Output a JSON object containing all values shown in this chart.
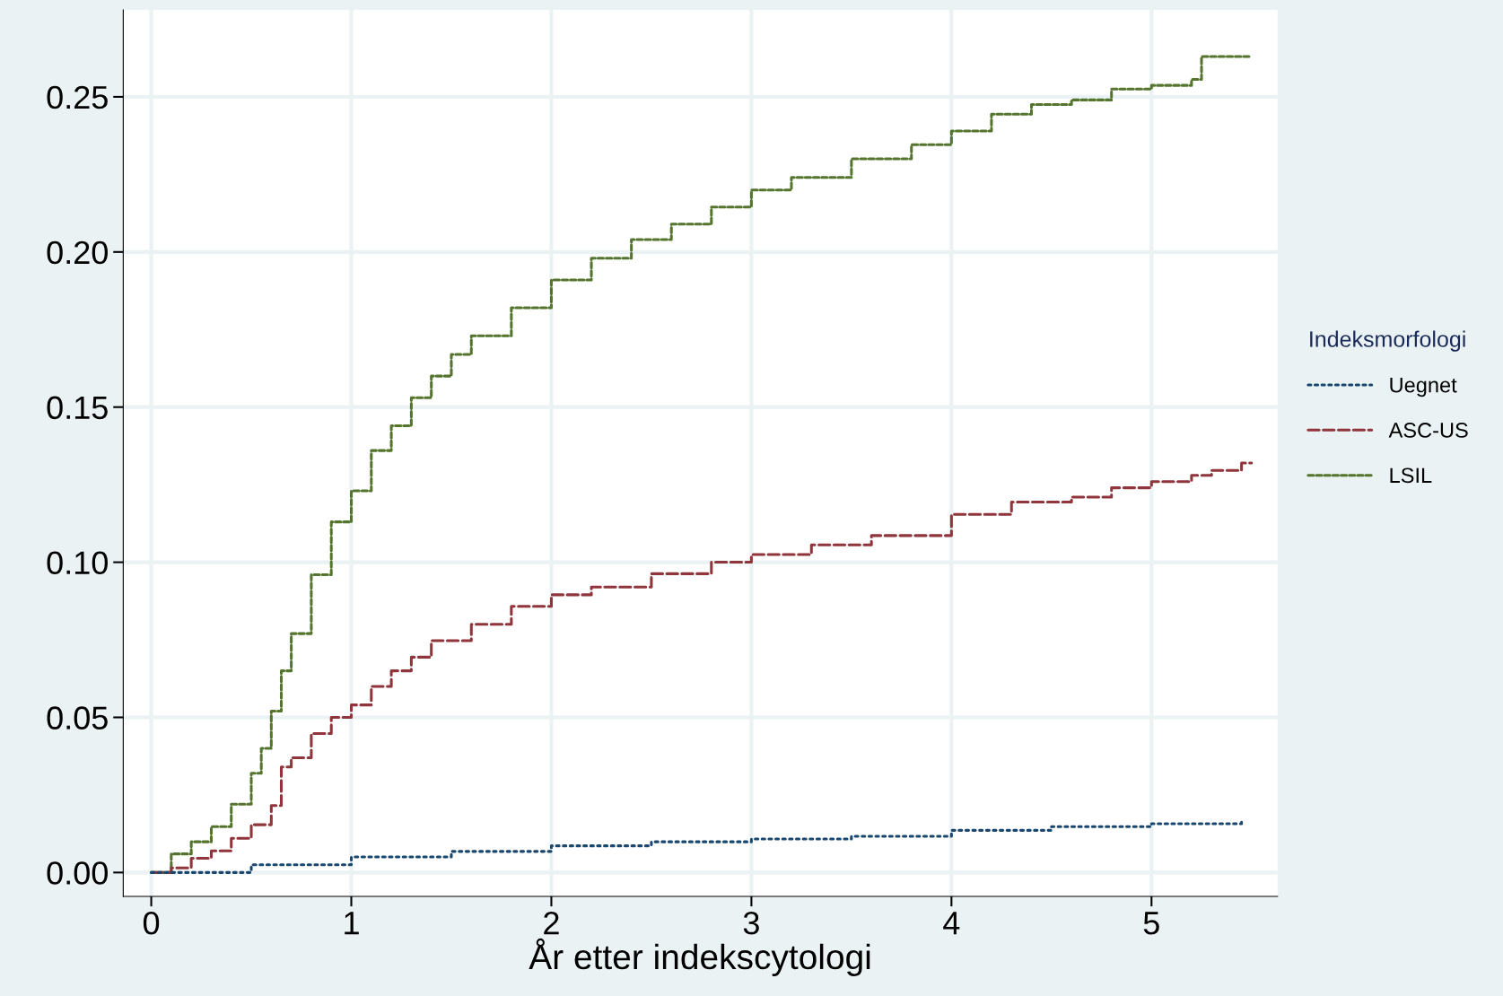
{
  "chart_data": {
    "type": "step",
    "xlabel": "År etter indekscytologi",
    "legend_title": "Indeksmorfologi",
    "legend": "right",
    "grid": true,
    "xlim": [
      -0.14,
      5.63
    ],
    "ylim": [
      -0.0077,
      0.278
    ],
    "xticks": [
      0,
      1,
      2,
      3,
      4,
      5
    ],
    "yticks": [
      {
        "value": 0,
        "label": "0.00"
      },
      {
        "value": 0.05,
        "label": "0.05"
      },
      {
        "value": 0.1,
        "label": "0.10"
      },
      {
        "value": 0.15,
        "label": "0.15"
      },
      {
        "value": 0.2,
        "label": "0.20"
      },
      {
        "value": 0.25,
        "label": "0.25"
      }
    ],
    "series": [
      {
        "name": "Uegnet",
        "color": "#1a476f",
        "line_style": "dotted",
        "x": [
          0,
          0.5,
          1.0,
          1.5,
          2.0,
          2.5,
          3.0,
          3.5,
          4.0,
          4.5,
          5.0,
          5.45
        ],
        "values": [
          0,
          0.0025,
          0.005,
          0.0068,
          0.0086,
          0.0099,
          0.0108,
          0.0117,
          0.0136,
          0.0148,
          0.0157,
          0.017
        ]
      },
      {
        "name": "ASC-US",
        "color": "#90353b",
        "line_style": "dashed",
        "x": [
          0,
          0.1,
          0.2,
          0.3,
          0.4,
          0.5,
          0.6,
          0.65,
          0.7,
          0.8,
          0.9,
          1.0,
          1.1,
          1.2,
          1.3,
          1.4,
          1.6,
          1.8,
          2.0,
          2.2,
          2.5,
          2.8,
          3.0,
          3.3,
          3.6,
          4.0,
          4.3,
          4.6,
          4.8,
          5.0,
          5.2,
          5.3,
          5.45,
          5.5
        ],
        "values": [
          0,
          0.0015,
          0.0046,
          0.007,
          0.011,
          0.0154,
          0.0216,
          0.034,
          0.037,
          0.0448,
          0.05,
          0.054,
          0.06,
          0.065,
          0.0694,
          0.0747,
          0.08,
          0.0858,
          0.0895,
          0.092,
          0.0963,
          0.1,
          0.1025,
          0.1056,
          0.1086,
          0.1154,
          0.1194,
          0.121,
          0.124,
          0.126,
          0.128,
          0.1296,
          0.132,
          0.132
        ]
      },
      {
        "name": "LSIL",
        "color": "#55752f",
        "line_style": "dashed_short",
        "x": [
          0,
          0.1,
          0.2,
          0.3,
          0.4,
          0.5,
          0.55,
          0.6,
          0.65,
          0.7,
          0.8,
          0.9,
          1.0,
          1.1,
          1.2,
          1.3,
          1.4,
          1.5,
          1.6,
          1.8,
          2.0,
          2.2,
          2.4,
          2.6,
          2.8,
          3.0,
          3.2,
          3.5,
          3.8,
          4.0,
          4.2,
          4.4,
          4.6,
          4.8,
          5.0,
          5.2,
          5.25,
          5.5
        ],
        "values": [
          0,
          0.006,
          0.0099,
          0.0148,
          0.022,
          0.032,
          0.04,
          0.052,
          0.065,
          0.077,
          0.096,
          0.113,
          0.123,
          0.136,
          0.144,
          0.153,
          0.16,
          0.167,
          0.173,
          0.182,
          0.191,
          0.198,
          0.204,
          0.209,
          0.2145,
          0.22,
          0.224,
          0.23,
          0.2346,
          0.239,
          0.2444,
          0.2475,
          0.249,
          0.2525,
          0.2537,
          0.2556,
          0.263,
          0.263
        ]
      }
    ]
  }
}
